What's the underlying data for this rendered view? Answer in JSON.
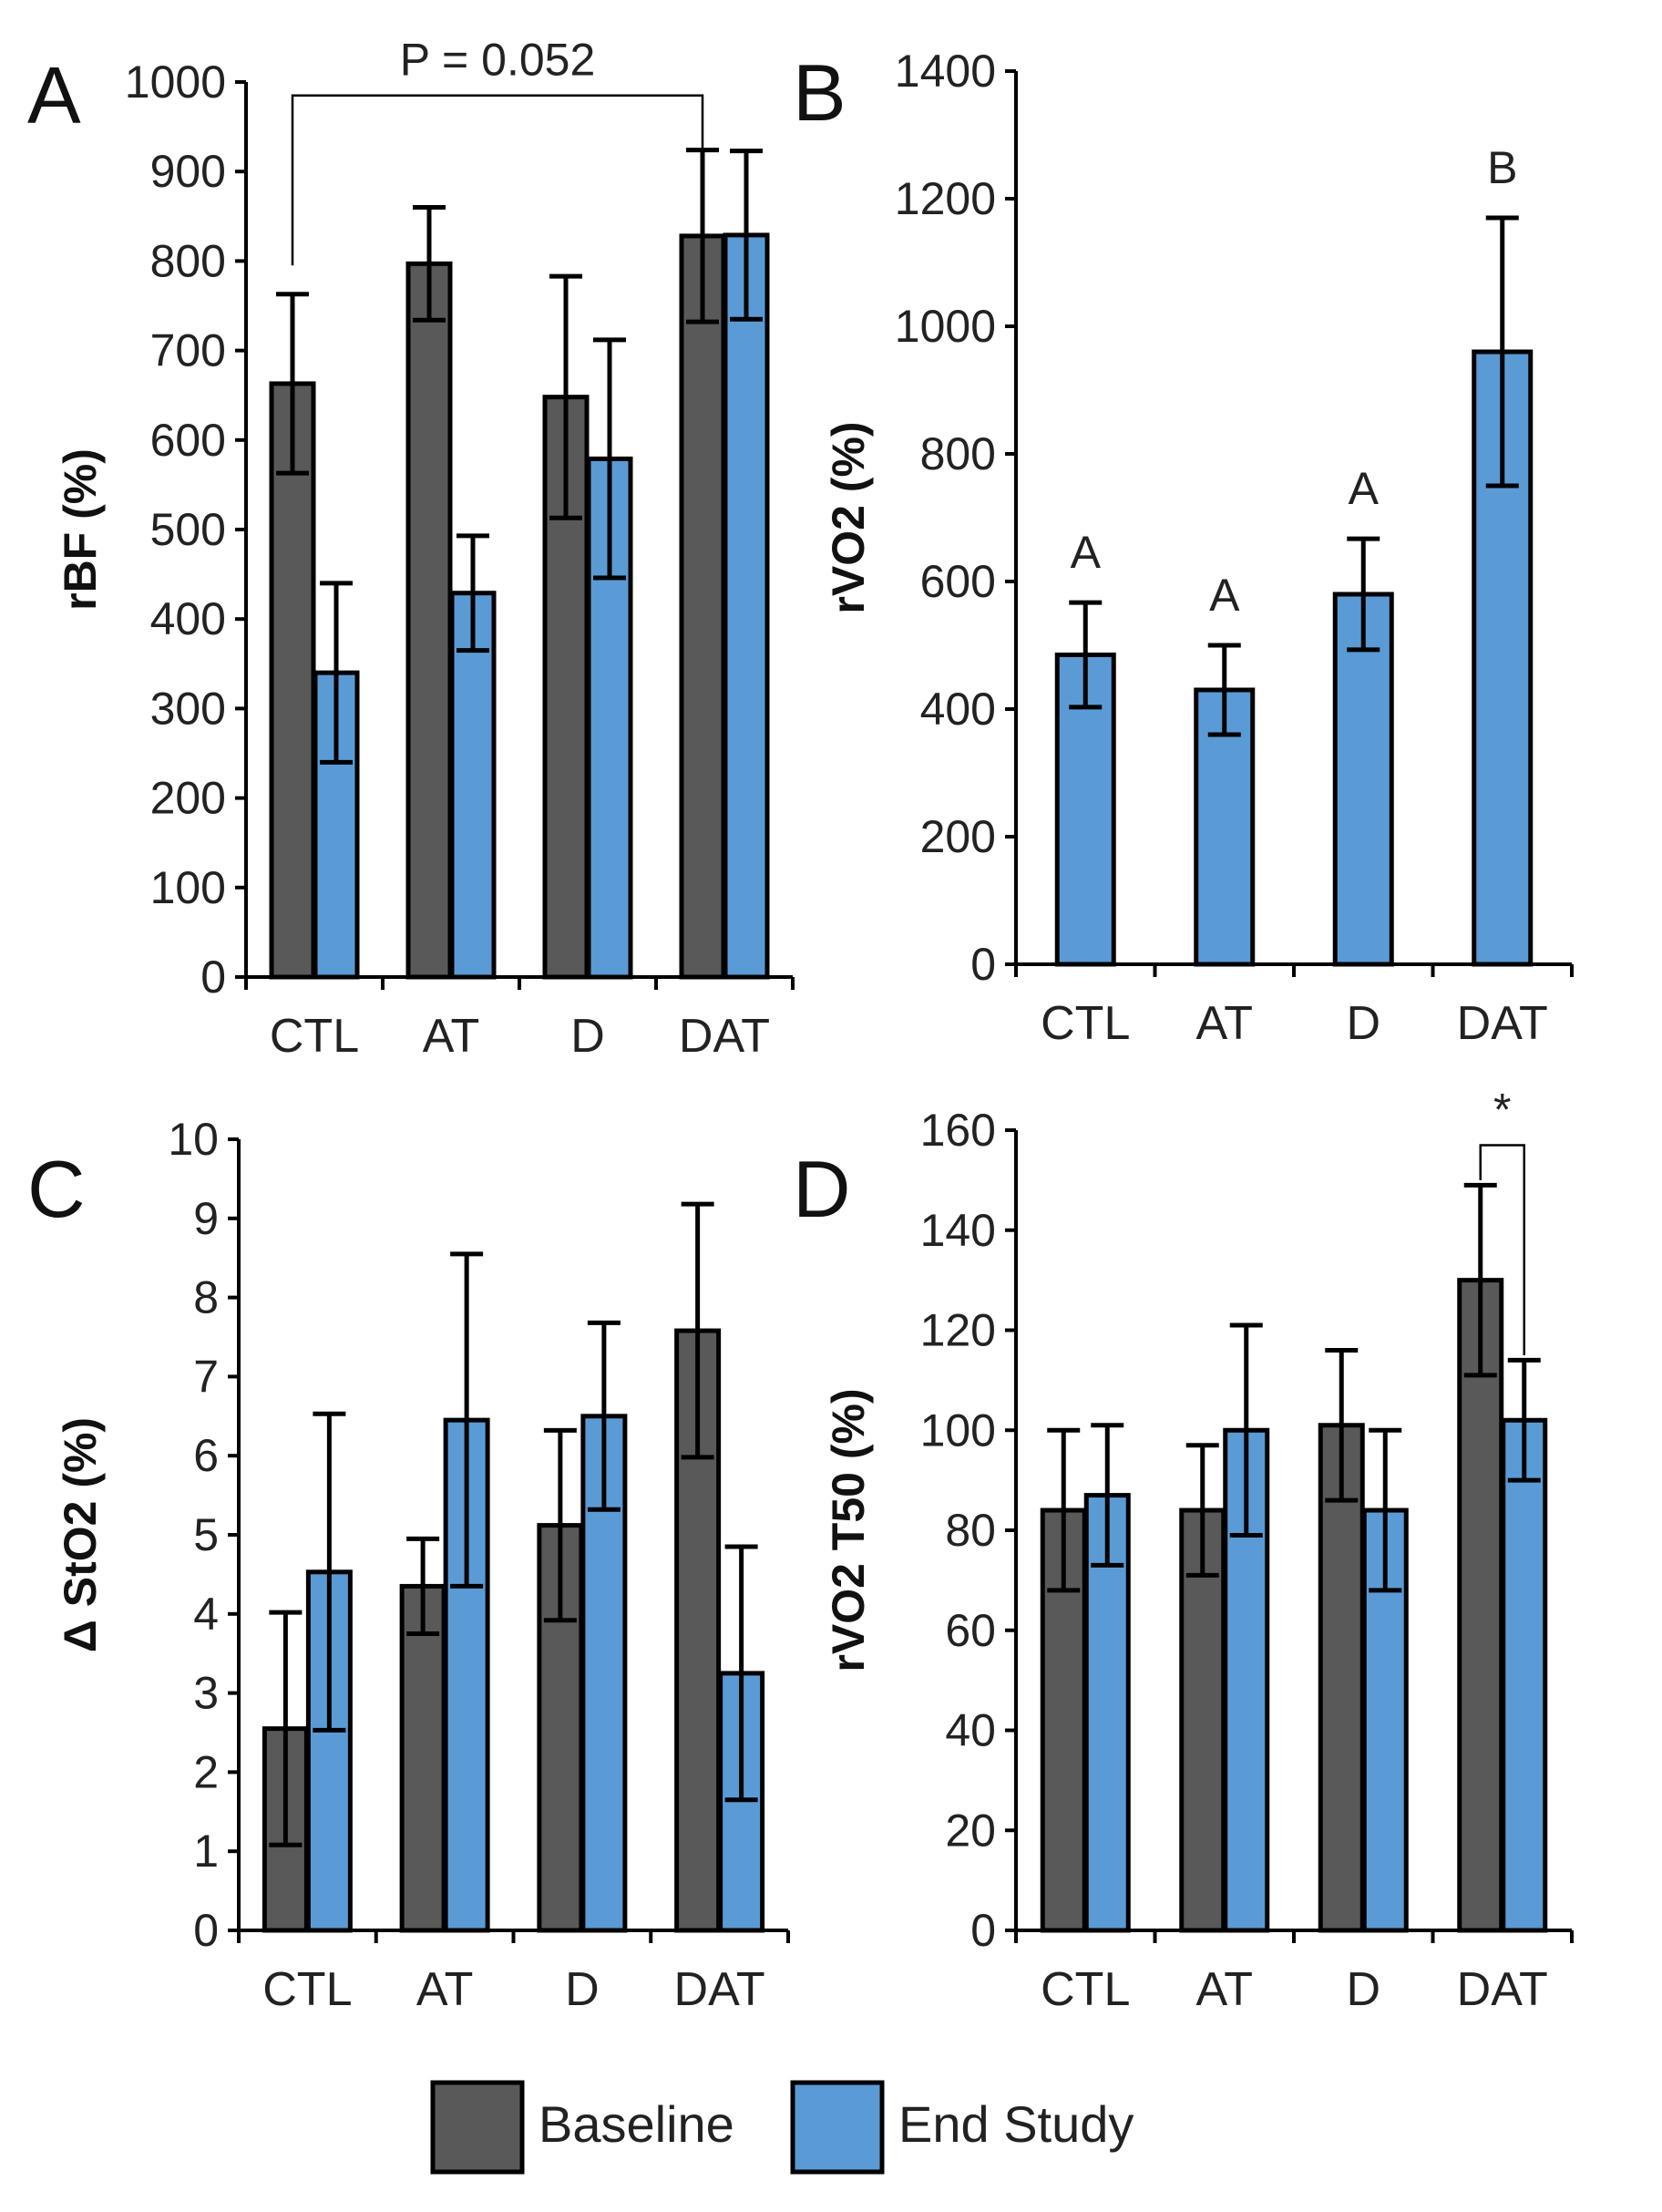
{
  "colors": {
    "baseline": "#595959",
    "end_study": "#5b9bd5",
    "axis": "#000000"
  },
  "legend": [
    {
      "label": "Baseline",
      "color": "#595959"
    },
    {
      "label": "End Study",
      "color": "#5b9bd5"
    }
  ],
  "chart_data": [
    {
      "panel": "A",
      "type": "bar",
      "ylabel": "rBF (%)",
      "categories": [
        "CTL",
        "AT",
        "D",
        "DAT"
      ],
      "ylim": [
        0,
        1000
      ],
      "yticks": [
        0,
        100,
        200,
        300,
        400,
        500,
        600,
        700,
        800,
        900,
        1000
      ],
      "series": [
        {
          "name": "Baseline",
          "values": [
            663,
            797,
            648,
            828
          ],
          "errors": [
            100,
            63,
            135,
            96
          ]
        },
        {
          "name": "End Study",
          "values": [
            340,
            429,
            579,
            829
          ],
          "errors": [
            100,
            64,
            133,
            94
          ]
        }
      ],
      "annotations": [
        {
          "type": "bracket",
          "text": "P = 0.052",
          "from": [
            0,
            0
          ],
          "to": [
            3,
            0
          ],
          "y": 985,
          "tail_to": 795
        }
      ]
    },
    {
      "panel": "B",
      "type": "bar",
      "ylabel": "rVO2 (%)",
      "categories": [
        "CTL",
        "AT",
        "D",
        "DAT"
      ],
      "ylim": [
        0,
        1400
      ],
      "yticks": [
        0,
        200,
        400,
        600,
        800,
        1000,
        1200,
        1400
      ],
      "series": [
        {
          "name": "End Study",
          "values": [
            485,
            430,
            580,
            960
          ],
          "errors": [
            82,
            70,
            87,
            210
          ]
        }
      ],
      "annotations": [
        {
          "type": "letter",
          "text": "A",
          "category": 0
        },
        {
          "type": "letter",
          "text": "A",
          "category": 1
        },
        {
          "type": "letter",
          "text": "A",
          "category": 2
        },
        {
          "type": "letter",
          "text": "B",
          "category": 3
        }
      ]
    },
    {
      "panel": "C",
      "type": "bar",
      "ylabel": "Δ StO2 (%)",
      "categories": [
        "CTL",
        "AT",
        "D",
        "DAT"
      ],
      "ylim": [
        0,
        10
      ],
      "yticks": [
        0,
        1,
        2,
        3,
        4,
        5,
        6,
        7,
        8,
        9,
        10
      ],
      "series": [
        {
          "name": "Baseline",
          "values": [
            2.55,
            4.35,
            5.12,
            7.58
          ],
          "errors": [
            1.47,
            0.6,
            1.2,
            1.6
          ]
        },
        {
          "name": "End Study",
          "values": [
            4.53,
            6.45,
            6.5,
            3.25
          ],
          "errors": [
            2.0,
            2.1,
            1.18,
            1.6
          ]
        }
      ],
      "annotations": []
    },
    {
      "panel": "D",
      "type": "bar",
      "ylabel": "rVO2 T50 (%)",
      "categories": [
        "CTL",
        "AT",
        "D",
        "DAT"
      ],
      "ylim": [
        0,
        160
      ],
      "yticks": [
        0,
        20,
        40,
        60,
        80,
        100,
        120,
        140,
        160
      ],
      "series": [
        {
          "name": "Baseline",
          "values": [
            84,
            84,
            101,
            130
          ],
          "errors": [
            16,
            13,
            15,
            19
          ]
        },
        {
          "name": "End Study",
          "values": [
            87,
            100,
            84,
            102
          ],
          "errors": [
            14,
            21,
            16,
            12
          ]
        }
      ],
      "annotations": [
        {
          "type": "bracket",
          "text": "*",
          "from": [
            3,
            0
          ],
          "to": [
            3,
            1
          ],
          "y": 157,
          "tail_from": 150,
          "tail_to": 115
        }
      ]
    }
  ]
}
